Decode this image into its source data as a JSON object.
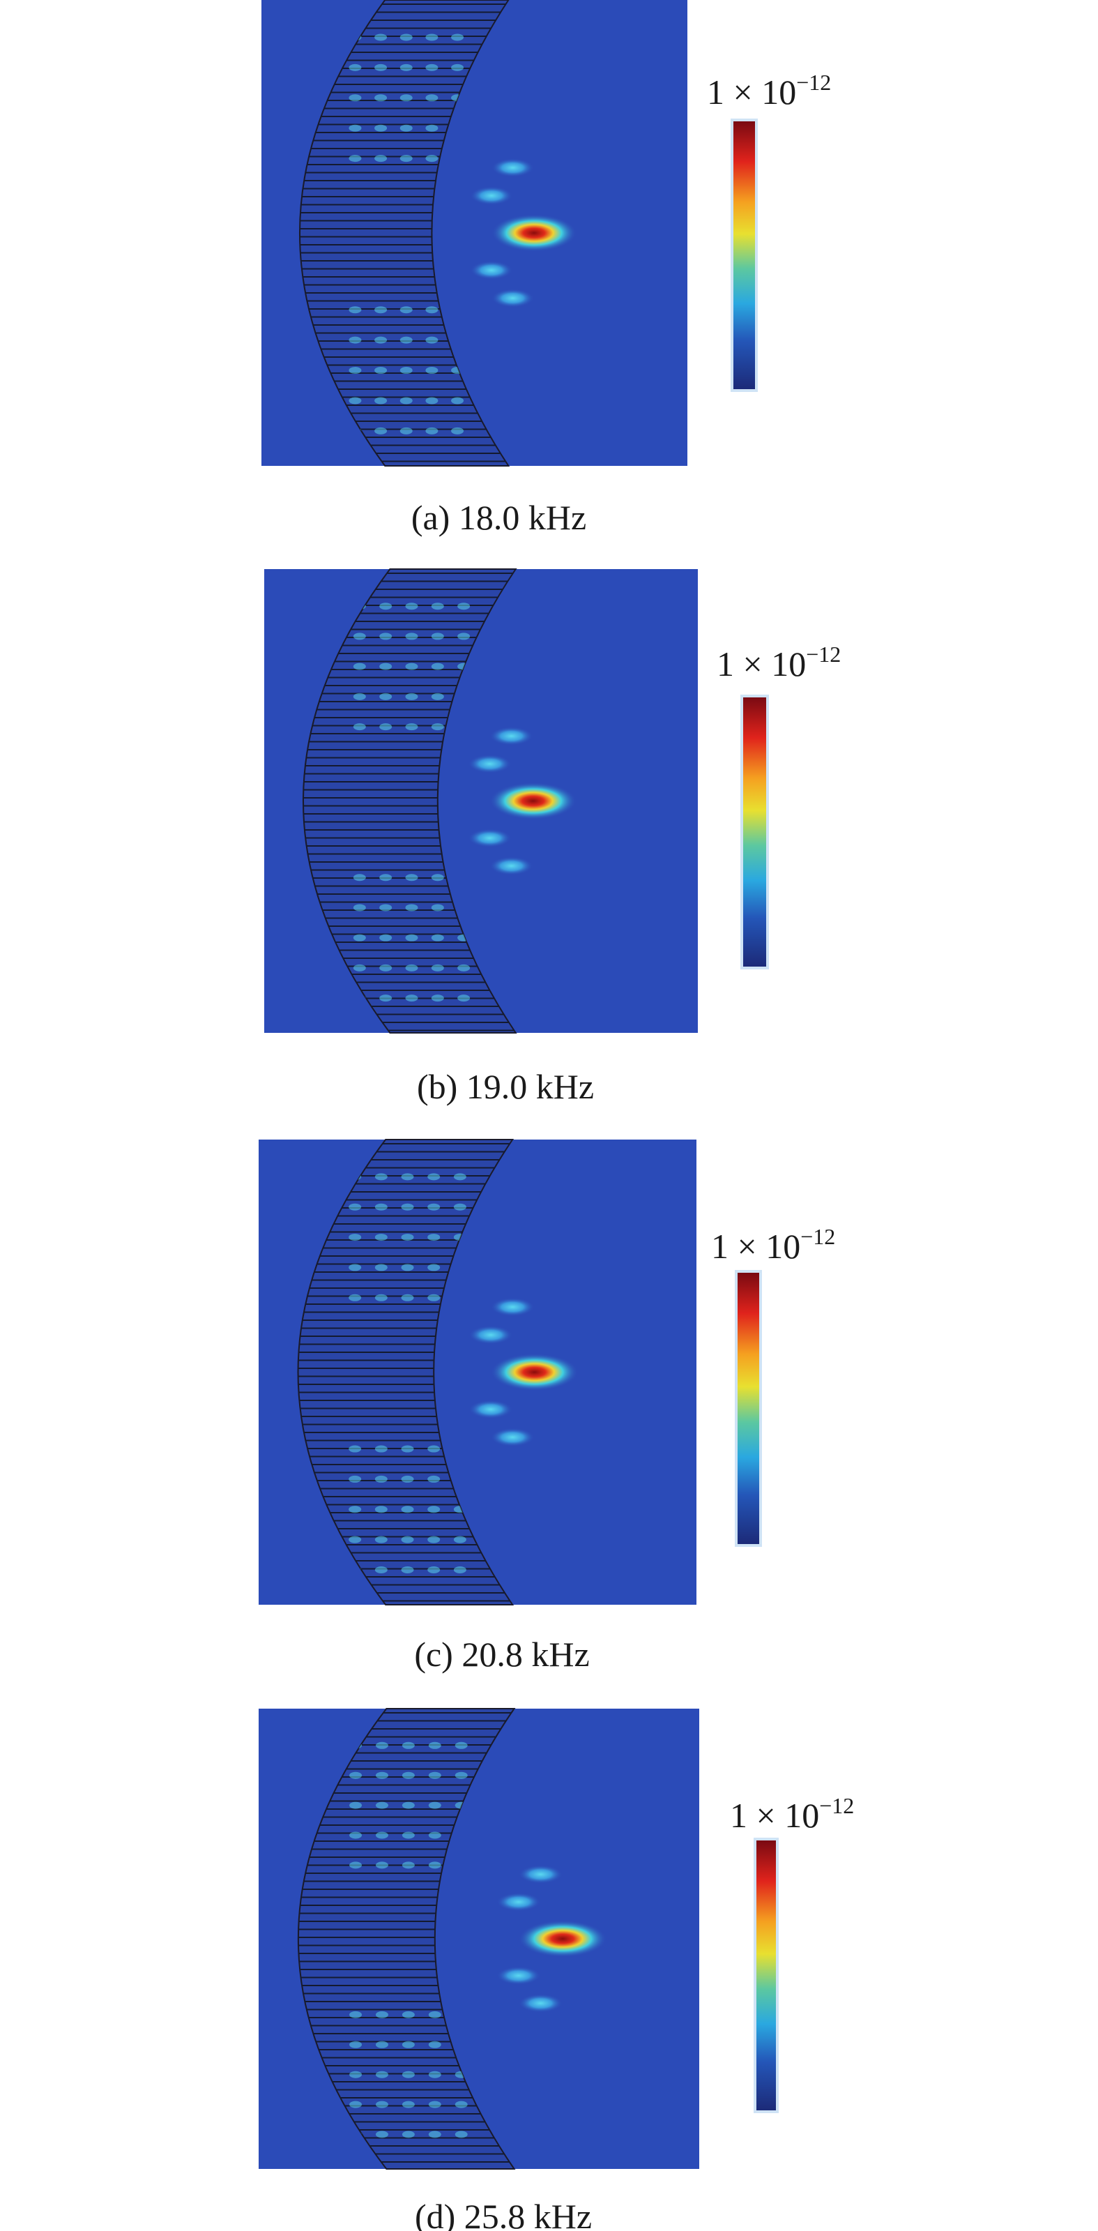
{
  "panels": [
    {
      "caption": "(a) 18.0 kHz",
      "colorbar_label": {
        "base": "1 × 10",
        "exponent": "−12"
      }
    },
    {
      "caption": "(b) 19.0 kHz",
      "colorbar_label": {
        "base": "1 × 10",
        "exponent": "−12"
      }
    },
    {
      "caption": "(c) 20.8 kHz",
      "colorbar_label": {
        "base": "1 × 10",
        "exponent": "−12"
      }
    },
    {
      "caption": "(d) 25.8 kHz",
      "colorbar_label": {
        "base": "1 × 10",
        "exponent": "−12"
      }
    }
  ]
}
